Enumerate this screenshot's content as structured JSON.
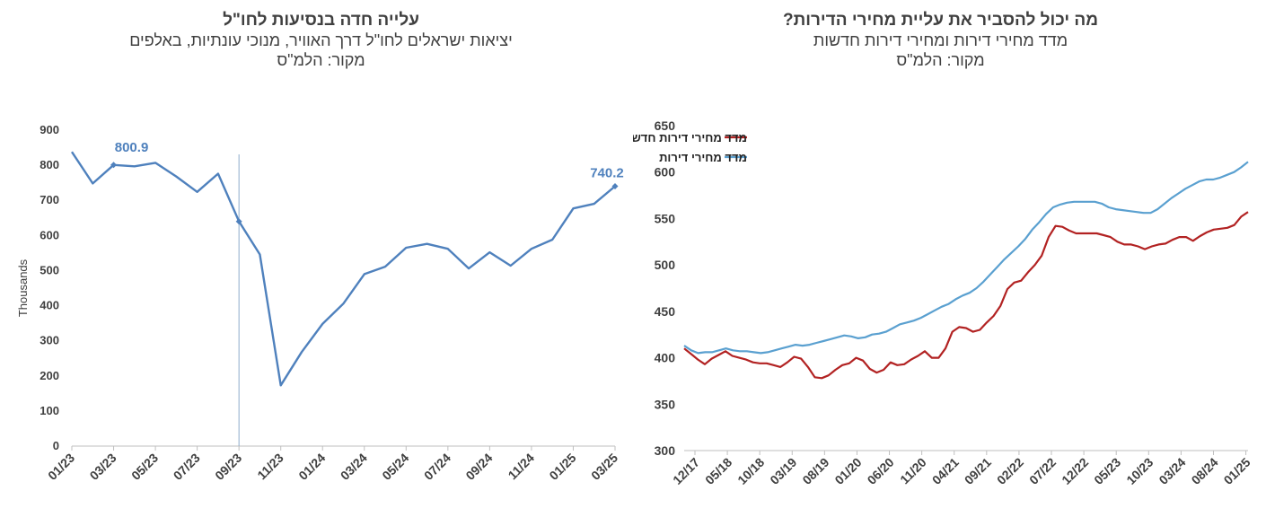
{
  "colors": {
    "line_blue": "#4f81bd",
    "line_light_blue": "#5aa0d0",
    "line_red": "#b22222",
    "text": "#404040",
    "axis": "#bfbfbf"
  },
  "left": {
    "title": "עלייה חדה בנסיעות לחו\"ל",
    "subtitle": "יציאות ישראלים לחו\"ל  דרך האוויר, מנוכי עונתיות, באלפים",
    "source": "מקור: הלמ\"ס"
  },
  "right": {
    "title": "מה יכול להסביר את עליית מחירי הדירות?",
    "subtitle": "מדד מחירי דירות ומחירי דירות חדשות",
    "source": "מקור: הלמ\"ס"
  },
  "chart_data": [
    {
      "type": "line",
      "ylabel": "Thousands",
      "ylim": [
        0,
        900
      ],
      "yticks": [
        0,
        100,
        200,
        300,
        400,
        500,
        600,
        700,
        800,
        900
      ],
      "x": [
        "01/23",
        "02/23",
        "03/23",
        "04/23",
        "05/23",
        "06/23",
        "07/23",
        "08/23",
        "09/23",
        "10/23",
        "11/23",
        "12/23",
        "01/24",
        "02/24",
        "03/24",
        "04/24",
        "05/24",
        "06/24",
        "07/24",
        "08/24",
        "09/24",
        "10/24",
        "11/24",
        "12/24",
        "01/25",
        "02/25",
        "03/25"
      ],
      "xtick_labels": [
        "01/23",
        "03/23",
        "05/23",
        "07/23",
        "09/23",
        "11/23",
        "01/24",
        "03/24",
        "05/24",
        "07/24",
        "09/24",
        "11/24",
        "01/25",
        "03/25"
      ],
      "series": [
        {
          "values": [
            838,
            748,
            800.9,
            797,
            807,
            768,
            724,
            776,
            640,
            546,
            173,
            268,
            348,
            406,
            490,
            511,
            565,
            576,
            562,
            506,
            552,
            514,
            562,
            588,
            677,
            690,
            740.2
          ]
        }
      ],
      "annotations": [
        {
          "x": "03/23",
          "label": "800.9"
        },
        {
          "x": "03/25",
          "label": "740.2"
        }
      ],
      "marker_x": "09/23"
    },
    {
      "type": "line",
      "ylim": [
        300,
        650
      ],
      "yticks": [
        300,
        350,
        400,
        450,
        500,
        550,
        600,
        650
      ],
      "xtick_labels": [
        "12/17",
        "05/18",
        "10/18",
        "03/19",
        "08/19",
        "01/20",
        "06/20",
        "11/20",
        "04/21",
        "09/21",
        "02/22",
        "07/22",
        "12/22",
        "05/23",
        "10/23",
        "03/24",
        "08/24",
        "01/25"
      ],
      "legend_position": "top-left",
      "series": [
        {
          "name": "מדד מחירי דירות חדשות",
          "color_key": "line_red",
          "values": [
            410,
            404,
            398,
            393,
            399,
            403,
            407,
            402,
            400,
            398,
            395,
            394,
            394,
            392,
            390,
            395,
            401,
            399,
            390,
            379,
            378,
            381,
            387,
            392,
            394,
            400,
            397,
            388,
            384,
            387,
            395,
            392,
            393,
            398,
            402,
            407,
            400,
            400,
            410,
            428,
            433,
            432,
            428,
            430,
            438,
            445,
            456,
            474,
            481,
            483,
            492,
            500,
            510,
            530,
            542,
            541,
            537,
            534,
            534,
            534,
            534,
            532,
            530,
            525,
            522,
            522,
            520,
            517,
            520,
            522,
            523,
            527,
            530,
            530,
            526,
            531,
            535,
            538,
            539,
            540,
            543,
            552,
            557
          ]
        },
        {
          "name": "מדד מחירי דירות",
          "color_key": "line_light_blue",
          "values": [
            413,
            408,
            405,
            406,
            406,
            408,
            410,
            408,
            407,
            407,
            406,
            405,
            406,
            408,
            410,
            412,
            414,
            413,
            414,
            416,
            418,
            420,
            422,
            424,
            423,
            421,
            422,
            425,
            426,
            428,
            432,
            436,
            438,
            440,
            443,
            447,
            451,
            455,
            458,
            463,
            467,
            470,
            475,
            482,
            490,
            498,
            506,
            513,
            520,
            528,
            538,
            546,
            555,
            562,
            565,
            567,
            568,
            568,
            568,
            568,
            566,
            562,
            560,
            559,
            558,
            557,
            556,
            556,
            560,
            566,
            572,
            577,
            582,
            586,
            590,
            592,
            592,
            594,
            597,
            600,
            605,
            611
          ]
        }
      ]
    }
  ]
}
